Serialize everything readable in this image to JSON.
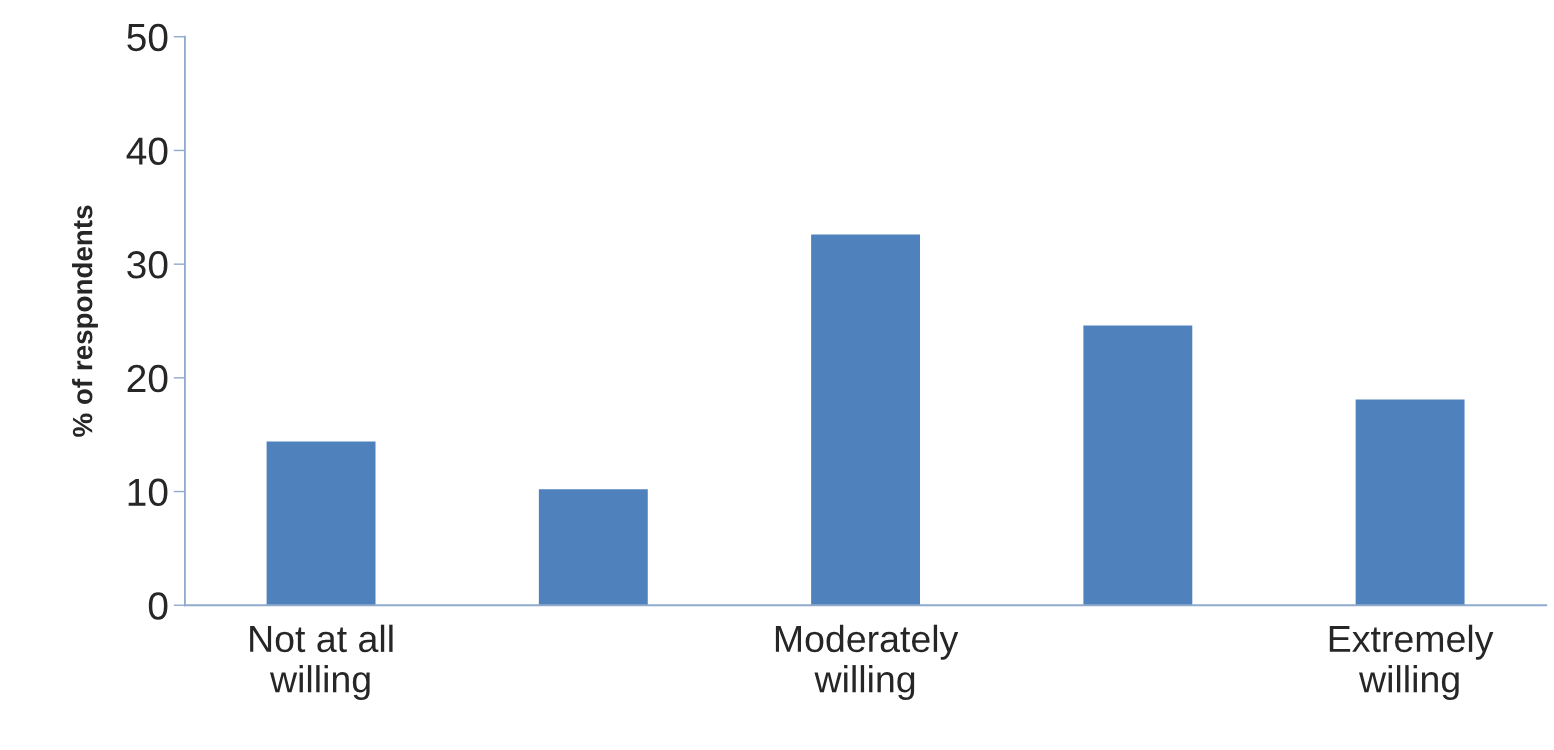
{
  "chart_data": {
    "type": "bar",
    "ylabel": "% of respondents",
    "categories": [
      "Not at all\nwilling",
      null,
      "Moderately\nwilling",
      null,
      "Extremely\nwilling"
    ],
    "values": [
      14.4,
      10.2,
      32.6,
      24.6,
      18.1
    ],
    "color": "#4f81bd",
    "ylim": [
      0,
      50
    ],
    "yticks": [
      0,
      10,
      20,
      30,
      40,
      50
    ],
    "grid": false,
    "legend": false
  }
}
